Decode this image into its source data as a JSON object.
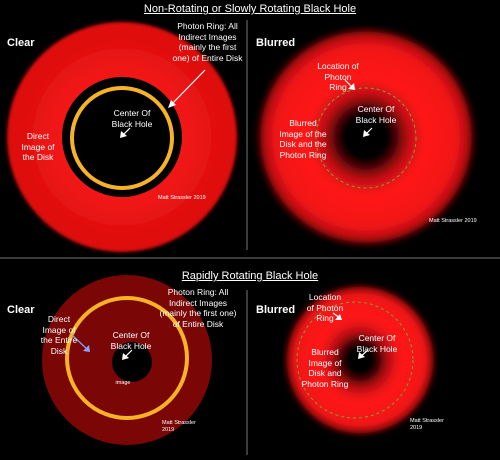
{
  "top": {
    "title": "Non-Rotating or Slowly Rotating Black Hole",
    "left": {
      "heading": "Clear",
      "photon_ring_label": "Photon Ring: All\nIndirect Images\n(mainly the first\none) of Entire Disk",
      "center_label": "Center Of\nBlack Hole",
      "direct_label": "Direct\nImage of\nthe Disk",
      "credit": "Matt Strassler 2019"
    },
    "right": {
      "heading": "Blurred",
      "location_label": "Location of\nPhoton\nRing",
      "center_label": "Center Of\nBlack Hole",
      "blurred_label": "Blurred\nImage of the\nDisk and the\nPhoton Ring",
      "credit": "Matt Strassler 2019"
    }
  },
  "bottom": {
    "title": "Rapidly Rotating Black Hole",
    "left": {
      "heading": "Clear",
      "direct_label": "Direct\nImage of\nthe Entire\nDisk",
      "photon_ring_label": "Photon Ring: All\nIndirect Images\n(mainly the first one)\nof  Entire Disk",
      "center_label": "Center Of\nBlack Hole",
      "image_label": "image",
      "credit": "Matt Strassler\n2019"
    },
    "right": {
      "heading": "Blurred",
      "location_label": "Location\nof Photon\nRing",
      "center_label": "Center Of\nBlack Hole",
      "blurred_label": "Blurred\nImage of\nDisk and\nPhoton Ring",
      "credit": "Matt Strassler\n2019"
    }
  },
  "colors": {
    "disk_red": "#e8111a",
    "dark_red": "#7a0606",
    "photon_ring": "#f7b325",
    "ring_dashed": "#7fa03a",
    "divider": "#777777",
    "arrow": "#ffffff"
  }
}
